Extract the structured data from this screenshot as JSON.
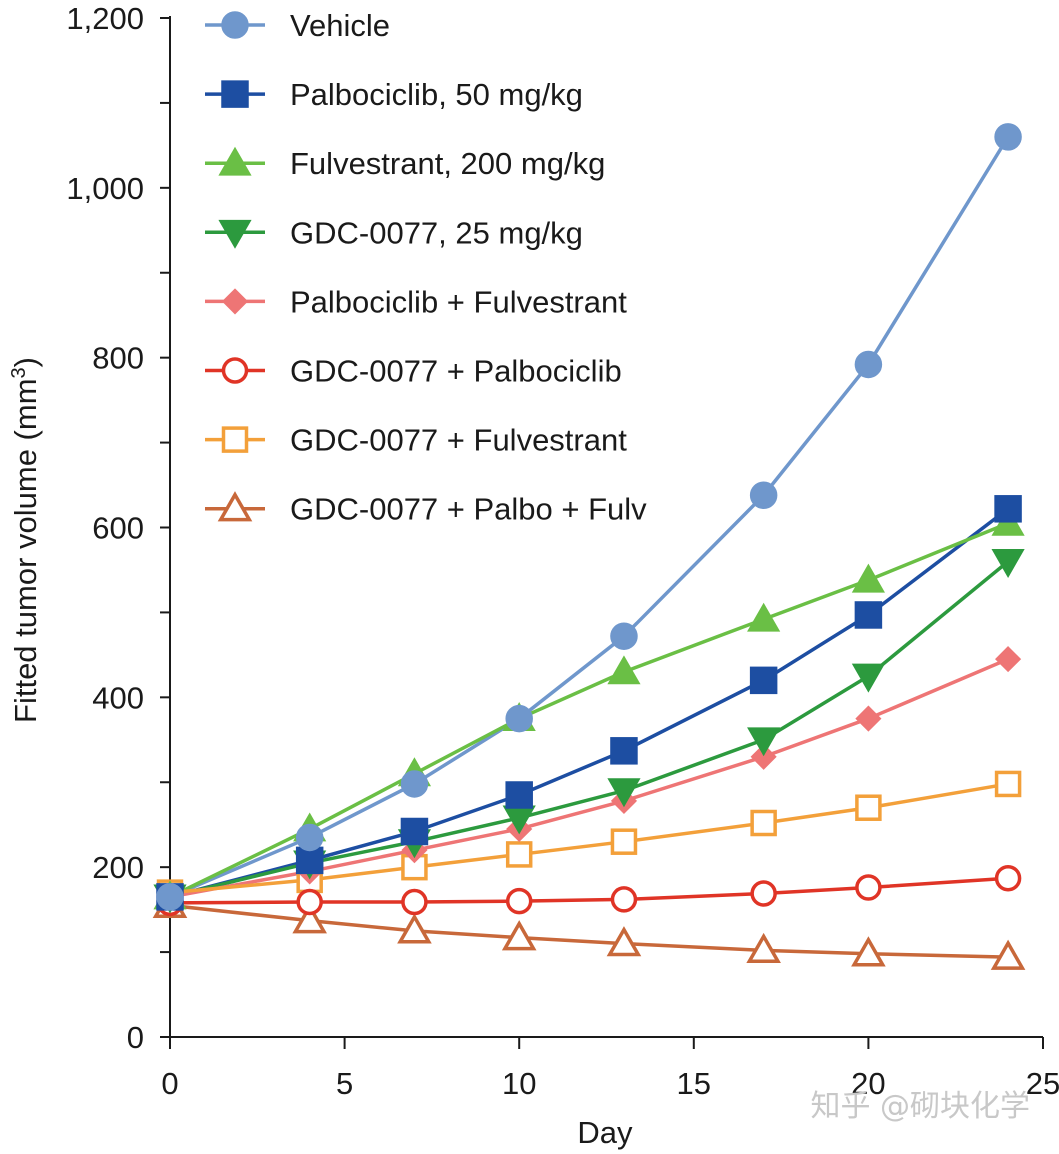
{
  "chart_data": {
    "type": "line",
    "title": "",
    "xlabel": "Day",
    "ylabel": "Fitted tumor volume (mm",
    "ylabel_superscript": "3",
    "ylabel_close": ")",
    "xlim": [
      0,
      25
    ],
    "ylim": [
      0,
      1200
    ],
    "x_ticks": [
      0,
      5,
      10,
      15,
      20,
      25
    ],
    "x_tick_labels": [
      "0",
      "5",
      "10",
      "15",
      "20",
      "25"
    ],
    "y_ticks": [
      0,
      200,
      400,
      600,
      800,
      1000,
      1200
    ],
    "y_tick_labels": [
      "0",
      "200",
      "400",
      "600",
      "800",
      "1,000",
      "1,200"
    ],
    "y_minor_step": 100,
    "grid": false,
    "legend_position": "top-left",
    "x": [
      0,
      4,
      7,
      10,
      13,
      17,
      20,
      24
    ],
    "series": [
      {
        "name": "Vehicle",
        "color": "#6f97cc",
        "marker": "circle",
        "filled": true,
        "values": [
          165,
          235,
          298,
          375,
          472,
          638,
          792,
          1060
        ]
      },
      {
        "name": "Palbociclib, 50 mg/kg",
        "color": "#1d4ea2",
        "marker": "square",
        "filled": true,
        "values": [
          165,
          208,
          242,
          285,
          337,
          420,
          497,
          622
        ]
      },
      {
        "name": "Fulvestrant, 200 mg/kg",
        "color": "#6abf45",
        "marker": "triangle-up",
        "filled": true,
        "values": [
          165,
          245,
          310,
          375,
          430,
          492,
          538,
          605
        ]
      },
      {
        "name": "GDC-0077, 25 mg/kg",
        "color": "#2c9a3e",
        "marker": "triangle-down",
        "filled": true,
        "values": [
          165,
          205,
          230,
          258,
          290,
          350,
          425,
          560
        ]
      },
      {
        "name": "Palbociclib + Fulvestrant",
        "color": "#ee7575",
        "marker": "diamond",
        "filled": true,
        "values": [
          165,
          195,
          220,
          245,
          278,
          330,
          375,
          445
        ]
      },
      {
        "name": "GDC-0077 + Palbociclib",
        "color": "#e03426",
        "marker": "circle",
        "filled": false,
        "values": [
          158,
          159,
          159,
          160,
          162,
          169,
          176,
          187
        ]
      },
      {
        "name": "GDC-0077 + Fulvestrant",
        "color": "#f3a03a",
        "marker": "square",
        "filled": false,
        "values": [
          170,
          185,
          200,
          215,
          230,
          252,
          270,
          298
        ]
      },
      {
        "name": "GDC-0077 + Palbo + Fulv",
        "color": "#c8683a",
        "marker": "triangle-up",
        "filled": false,
        "values": [
          155,
          137,
          125,
          117,
          110,
          102,
          98,
          94
        ]
      }
    ]
  },
  "watermark": "知乎 @砌块化学"
}
